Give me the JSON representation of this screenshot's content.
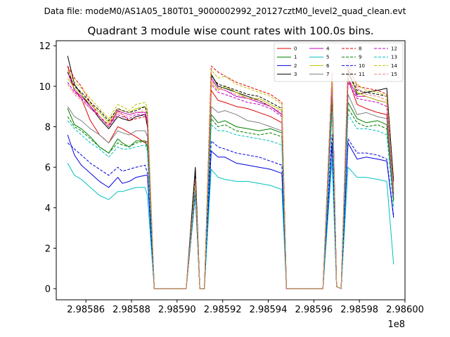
{
  "chart_data": {
    "type": "line",
    "suptitle": "Data file: modeM0/AS1A05_180T01_9000002992_20127cztM0_level2_quad_clean.evt",
    "title": "Quadrant 3 module wise count rates with 100.0s bins.",
    "xlabel": "",
    "ylabel": "",
    "x_offset_label": "1e8",
    "xlim": [
      2.985847,
      2.986
    ],
    "ylim": [
      -0.55,
      12.25
    ],
    "x_ticks": [
      2.98586,
      2.98588,
      2.9859,
      2.98592,
      2.98594,
      2.98596,
      2.98598,
      2.986
    ],
    "x_tick_labels": [
      "2.98586",
      "2.98588",
      "2.98590",
      "2.98592",
      "2.98594",
      "2.98596",
      "2.98598",
      "2.98600"
    ],
    "y_ticks": [
      0,
      2,
      4,
      6,
      8,
      10,
      12
    ],
    "y_tick_labels": [
      "0",
      "2",
      "4",
      "6",
      "8",
      "10",
      "12"
    ],
    "grid": false,
    "legend_position": "upper right",
    "x": [
      2.985852,
      2.985855,
      2.985858,
      2.985862,
      2.985866,
      2.98587,
      2.985874,
      2.985876,
      2.985879,
      2.985882,
      2.985886,
      2.985887,
      2.98589,
      2.985904,
      2.985908,
      2.98591,
      2.985912,
      2.985915,
      2.985918,
      2.985921,
      2.985926,
      2.985931,
      2.985936,
      2.985941,
      2.985946,
      2.985948,
      2.985964,
      2.985968,
      2.98597,
      2.985972,
      2.985975,
      2.985979,
      2.985983,
      2.985988,
      2.985992,
      2.985995
    ],
    "series": [
      {
        "name": "0",
        "color": "#e00000",
        "dash": false,
        "values": [
          11.0,
          9.8,
          9.4,
          8.3,
          7.6,
          7.2,
          8.0,
          7.9,
          7.7,
          7.5,
          7.2,
          7.3,
          0,
          0,
          5.0,
          0,
          0,
          9.8,
          9.3,
          9.2,
          9.0,
          8.9,
          8.7,
          8.5,
          8.2,
          0,
          0,
          9.8,
          0.1,
          0,
          10.4,
          9.1,
          8.9,
          8.7,
          8.6,
          4.4
        ]
      },
      {
        "name": "1",
        "color": "#008000",
        "dash": false,
        "values": [
          8.9,
          8.1,
          7.9,
          7.5,
          7.0,
          6.7,
          7.4,
          7.2,
          7.0,
          7.3,
          7.3,
          7.0,
          0,
          0,
          4.8,
          0,
          0,
          8.6,
          8.2,
          8.3,
          8.0,
          7.9,
          7.8,
          7.9,
          7.7,
          0,
          0,
          9.6,
          0.1,
          0,
          9.2,
          8.4,
          8.2,
          8.3,
          8.1,
          4.4
        ]
      },
      {
        "name": "2",
        "color": "#0000e0",
        "dash": false,
        "values": [
          7.6,
          6.6,
          6.1,
          5.7,
          5.3,
          5.0,
          5.5,
          5.2,
          5.3,
          5.5,
          5.6,
          5.6,
          0,
          0,
          4.7,
          0,
          0,
          6.8,
          6.5,
          6.5,
          6.2,
          6.1,
          6.0,
          5.9,
          5.7,
          0,
          0,
          7.2,
          0.1,
          0,
          7.2,
          6.4,
          6.5,
          6.4,
          6.3,
          3.5
        ]
      },
      {
        "name": "3",
        "color": "#000000",
        "dash": false,
        "values": [
          11.5,
          10.1,
          9.6,
          9.0,
          8.4,
          7.9,
          8.5,
          8.4,
          8.3,
          8.5,
          8.6,
          8.0,
          0,
          0,
          6.0,
          0,
          0,
          10.6,
          10.0,
          9.9,
          9.7,
          9.5,
          9.3,
          9.0,
          8.6,
          0,
          0,
          10.6,
          0.1,
          0,
          10.8,
          9.6,
          9.7,
          9.8,
          9.9,
          5.3
        ]
      },
      {
        "name": "4",
        "color": "#c000c0",
        "dash": false,
        "values": [
          10.7,
          9.8,
          9.5,
          9.0,
          8.5,
          8.0,
          8.8,
          8.7,
          8.6,
          8.7,
          8.7,
          8.3,
          0,
          0,
          5.2,
          0,
          0,
          10.4,
          9.9,
          9.8,
          9.5,
          9.4,
          9.2,
          9.0,
          8.6,
          0,
          0,
          10.2,
          0.1,
          0,
          10.4,
          9.5,
          9.5,
          9.3,
          9.2,
          4.7
        ]
      },
      {
        "name": "5",
        "color": "#00c0c0",
        "dash": false,
        "values": [
          6.2,
          5.6,
          5.4,
          5.0,
          4.6,
          4.4,
          4.8,
          4.8,
          4.9,
          5.0,
          5.0,
          4.6,
          0,
          0,
          4.6,
          0,
          0,
          5.9,
          5.5,
          5.4,
          5.3,
          5.3,
          5.2,
          5.1,
          4.9,
          0,
          0,
          6.4,
          0.1,
          0,
          6.0,
          5.5,
          5.5,
          5.4,
          5.3,
          1.2
        ]
      },
      {
        "name": "6",
        "color": "#c0c000",
        "dash": false,
        "values": [
          10.4,
          9.9,
          9.6,
          9.1,
          8.7,
          8.2,
          8.9,
          8.8,
          8.7,
          8.9,
          9.0,
          8.8,
          0,
          0,
          5.0,
          0,
          0,
          10.2,
          9.8,
          10.0,
          9.7,
          9.4,
          9.4,
          9.1,
          8.8,
          0,
          0,
          10.2,
          0.1,
          0,
          10.6,
          9.7,
          9.5,
          9.3,
          9.2,
          4.8
        ]
      },
      {
        "name": "7",
        "color": "#808080",
        "dash": false,
        "values": [
          9.0,
          8.5,
          8.3,
          7.9,
          7.6,
          7.2,
          7.8,
          7.7,
          7.6,
          7.8,
          7.8,
          7.5,
          0,
          0,
          5.1,
          0,
          0,
          9.0,
          8.7,
          8.8,
          8.6,
          8.3,
          8.2,
          8.0,
          7.8,
          0,
          0,
          9.3,
          0.1,
          0,
          9.6,
          8.6,
          8.7,
          8.5,
          8.4,
          4.5
        ]
      },
      {
        "name": "8",
        "color": "#e00000",
        "dash": true,
        "values": [
          11.0,
          10.4,
          10.0,
          9.2,
          8.5,
          8.1,
          8.8,
          8.6,
          8.3,
          8.4,
          8.5,
          8.2,
          0,
          0,
          5.3,
          0,
          0,
          11.0,
          10.7,
          10.5,
          10.2,
          10.0,
          9.8,
          9.6,
          9.2,
          0,
          0,
          10.6,
          0.1,
          0,
          11.0,
          10.0,
          9.9,
          9.8,
          9.6,
          4.9
        ]
      },
      {
        "name": "9",
        "color": "#008000",
        "dash": true,
        "values": [
          8.5,
          8.0,
          7.8,
          7.4,
          7.0,
          6.7,
          7.2,
          7.1,
          7.0,
          7.2,
          7.3,
          6.9,
          0,
          0,
          4.9,
          0,
          0,
          8.4,
          8.0,
          8.1,
          7.8,
          7.7,
          7.6,
          7.7,
          7.5,
          0,
          0,
          9.1,
          0.1,
          0,
          8.9,
          8.2,
          8.0,
          8.1,
          7.9,
          4.2
        ]
      },
      {
        "name": "10",
        "color": "#0000e0",
        "dash": true,
        "values": [
          7.2,
          6.9,
          6.6,
          6.2,
          5.9,
          5.6,
          6.0,
          5.8,
          5.9,
          6.0,
          6.1,
          5.7,
          0,
          0,
          4.8,
          0,
          0,
          7.3,
          7.0,
          6.9,
          6.7,
          6.6,
          6.5,
          6.3,
          6.1,
          0,
          0,
          7.6,
          0.1,
          0,
          7.4,
          6.7,
          6.7,
          6.6,
          6.4,
          3.6
        ]
      },
      {
        "name": "11",
        "color": "#000000",
        "dash": true,
        "values": [
          10.7,
          10.0,
          9.7,
          9.2,
          8.8,
          8.3,
          8.9,
          8.8,
          8.7,
          8.8,
          9.0,
          8.6,
          0,
          0,
          5.6,
          0,
          0,
          10.5,
          10.1,
          10.0,
          9.8,
          9.6,
          9.5,
          9.2,
          8.9,
          0,
          0,
          10.4,
          0.1,
          0,
          10.7,
          9.8,
          9.7,
          9.6,
          9.5,
          5.0
        ]
      },
      {
        "name": "12",
        "color": "#c000c0",
        "dash": true,
        "values": [
          10.2,
          9.7,
          9.4,
          8.9,
          8.5,
          8.0,
          8.6,
          8.5,
          8.4,
          8.6,
          8.6,
          8.2,
          0,
          0,
          5.1,
          0,
          0,
          10.1,
          9.7,
          9.6,
          9.4,
          9.2,
          9.1,
          8.9,
          8.5,
          0,
          0,
          10.0,
          0.1,
          0,
          10.2,
          9.4,
          9.3,
          9.2,
          9.0,
          4.6
        ]
      },
      {
        "name": "13",
        "color": "#00c0c0",
        "dash": true,
        "values": [
          8.3,
          7.9,
          7.6,
          7.2,
          6.9,
          6.5,
          7.0,
          6.9,
          6.9,
          7.0,
          7.1,
          6.8,
          0,
          0,
          5.0,
          0,
          0,
          8.1,
          7.8,
          7.8,
          7.6,
          7.5,
          7.4,
          7.3,
          7.1,
          0,
          0,
          8.7,
          0.1,
          0,
          8.6,
          7.9,
          7.9,
          7.8,
          7.6,
          4.0
        ]
      },
      {
        "name": "14",
        "color": "#c0c000",
        "dash": true,
        "values": [
          10.8,
          10.2,
          9.9,
          9.4,
          8.9,
          8.4,
          9.1,
          9.0,
          8.8,
          9.1,
          9.2,
          8.9,
          0,
          0,
          5.2,
          0,
          0,
          10.8,
          10.4,
          10.5,
          10.1,
          9.9,
          9.7,
          9.5,
          9.1,
          0,
          0,
          10.5,
          0.1,
          0,
          10.9,
          10.1,
          9.8,
          9.7,
          9.5,
          4.9
        ]
      },
      {
        "name": "15",
        "color": "#f08080",
        "dash": true,
        "values": [
          10.1,
          9.6,
          9.3,
          8.9,
          8.5,
          8.0,
          8.7,
          8.6,
          8.5,
          8.7,
          8.8,
          8.5,
          0,
          0,
          5.4,
          0,
          0,
          10.3,
          9.9,
          9.8,
          9.6,
          9.4,
          9.3,
          9.0,
          8.7,
          0,
          0,
          10.7,
          0.1,
          0,
          11.4,
          9.9,
          9.6,
          9.5,
          9.3,
          4.8
        ]
      }
    ]
  }
}
